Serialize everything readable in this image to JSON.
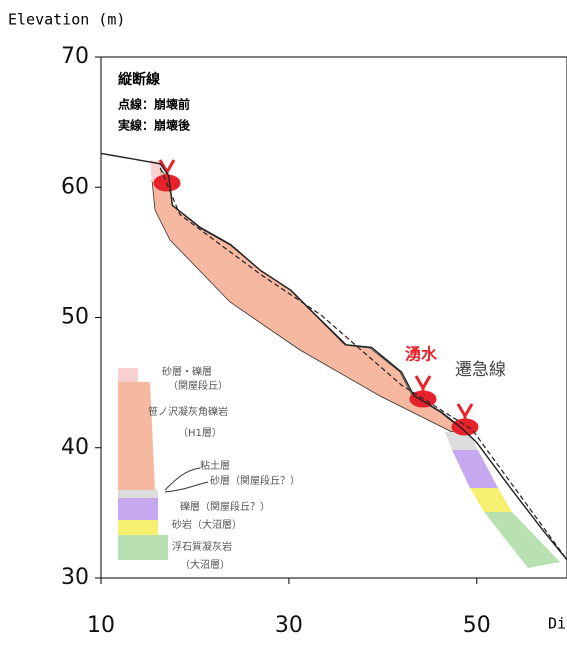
{
  "chart_data": {
    "type": "line",
    "ylabel": "Elevation (m)",
    "xlabel": "Di",
    "xlim": [
      10,
      59.6
    ],
    "xticks": [
      10,
      30,
      50
    ],
    "ylim": [
      30,
      70
    ],
    "yticks": [
      30,
      40,
      50,
      60,
      70
    ],
    "series": [
      {
        "color": "#222222",
        "style": "solid",
        "x": [
          10,
          16.3,
          17.2,
          17.6,
          20.6,
          23.8,
          27.0,
          30.2,
          33.4,
          36.1,
          38.8,
          42.0,
          43.3,
          46.3,
          48.4,
          50.0,
          53.7,
          57.0,
          59.6
        ],
        "values": [
          62.6,
          61.8,
          60.9,
          58.6,
          56.9,
          55.6,
          53.6,
          52.1,
          49.8,
          47.9,
          47.7,
          45.8,
          44.0,
          42.7,
          41.5,
          40.4,
          36.8,
          33.7,
          31.4
        ]
      },
      {
        "color": "#222222",
        "style": "dashed",
        "x": [
          16.3,
          18.4,
          27.0,
          33.4,
          42.0,
          49.5,
          59.6
        ],
        "values": [
          61.5,
          57.9,
          53.3,
          50.2,
          44.8,
          41.4,
          31.4
        ]
      }
    ],
    "annotations": {
      "profile": "縦断線",
      "before": "点線：崩壊前",
      "after": "実線：崩壊後",
      "spring": "湧水",
      "knickline": "遷急線",
      "layers": [
        "砂層・礫層",
        "（関屋段丘）",
        "笹ノ沢凝灰角礫岩",
        "（H1層）",
        "粘土層",
        "砂層（関屋段丘？）",
        "礫層（関屋段丘？）",
        "砂岩（大沼層）",
        "浮石質凝灰岩",
        "（大沼層）"
      ]
    }
  }
}
